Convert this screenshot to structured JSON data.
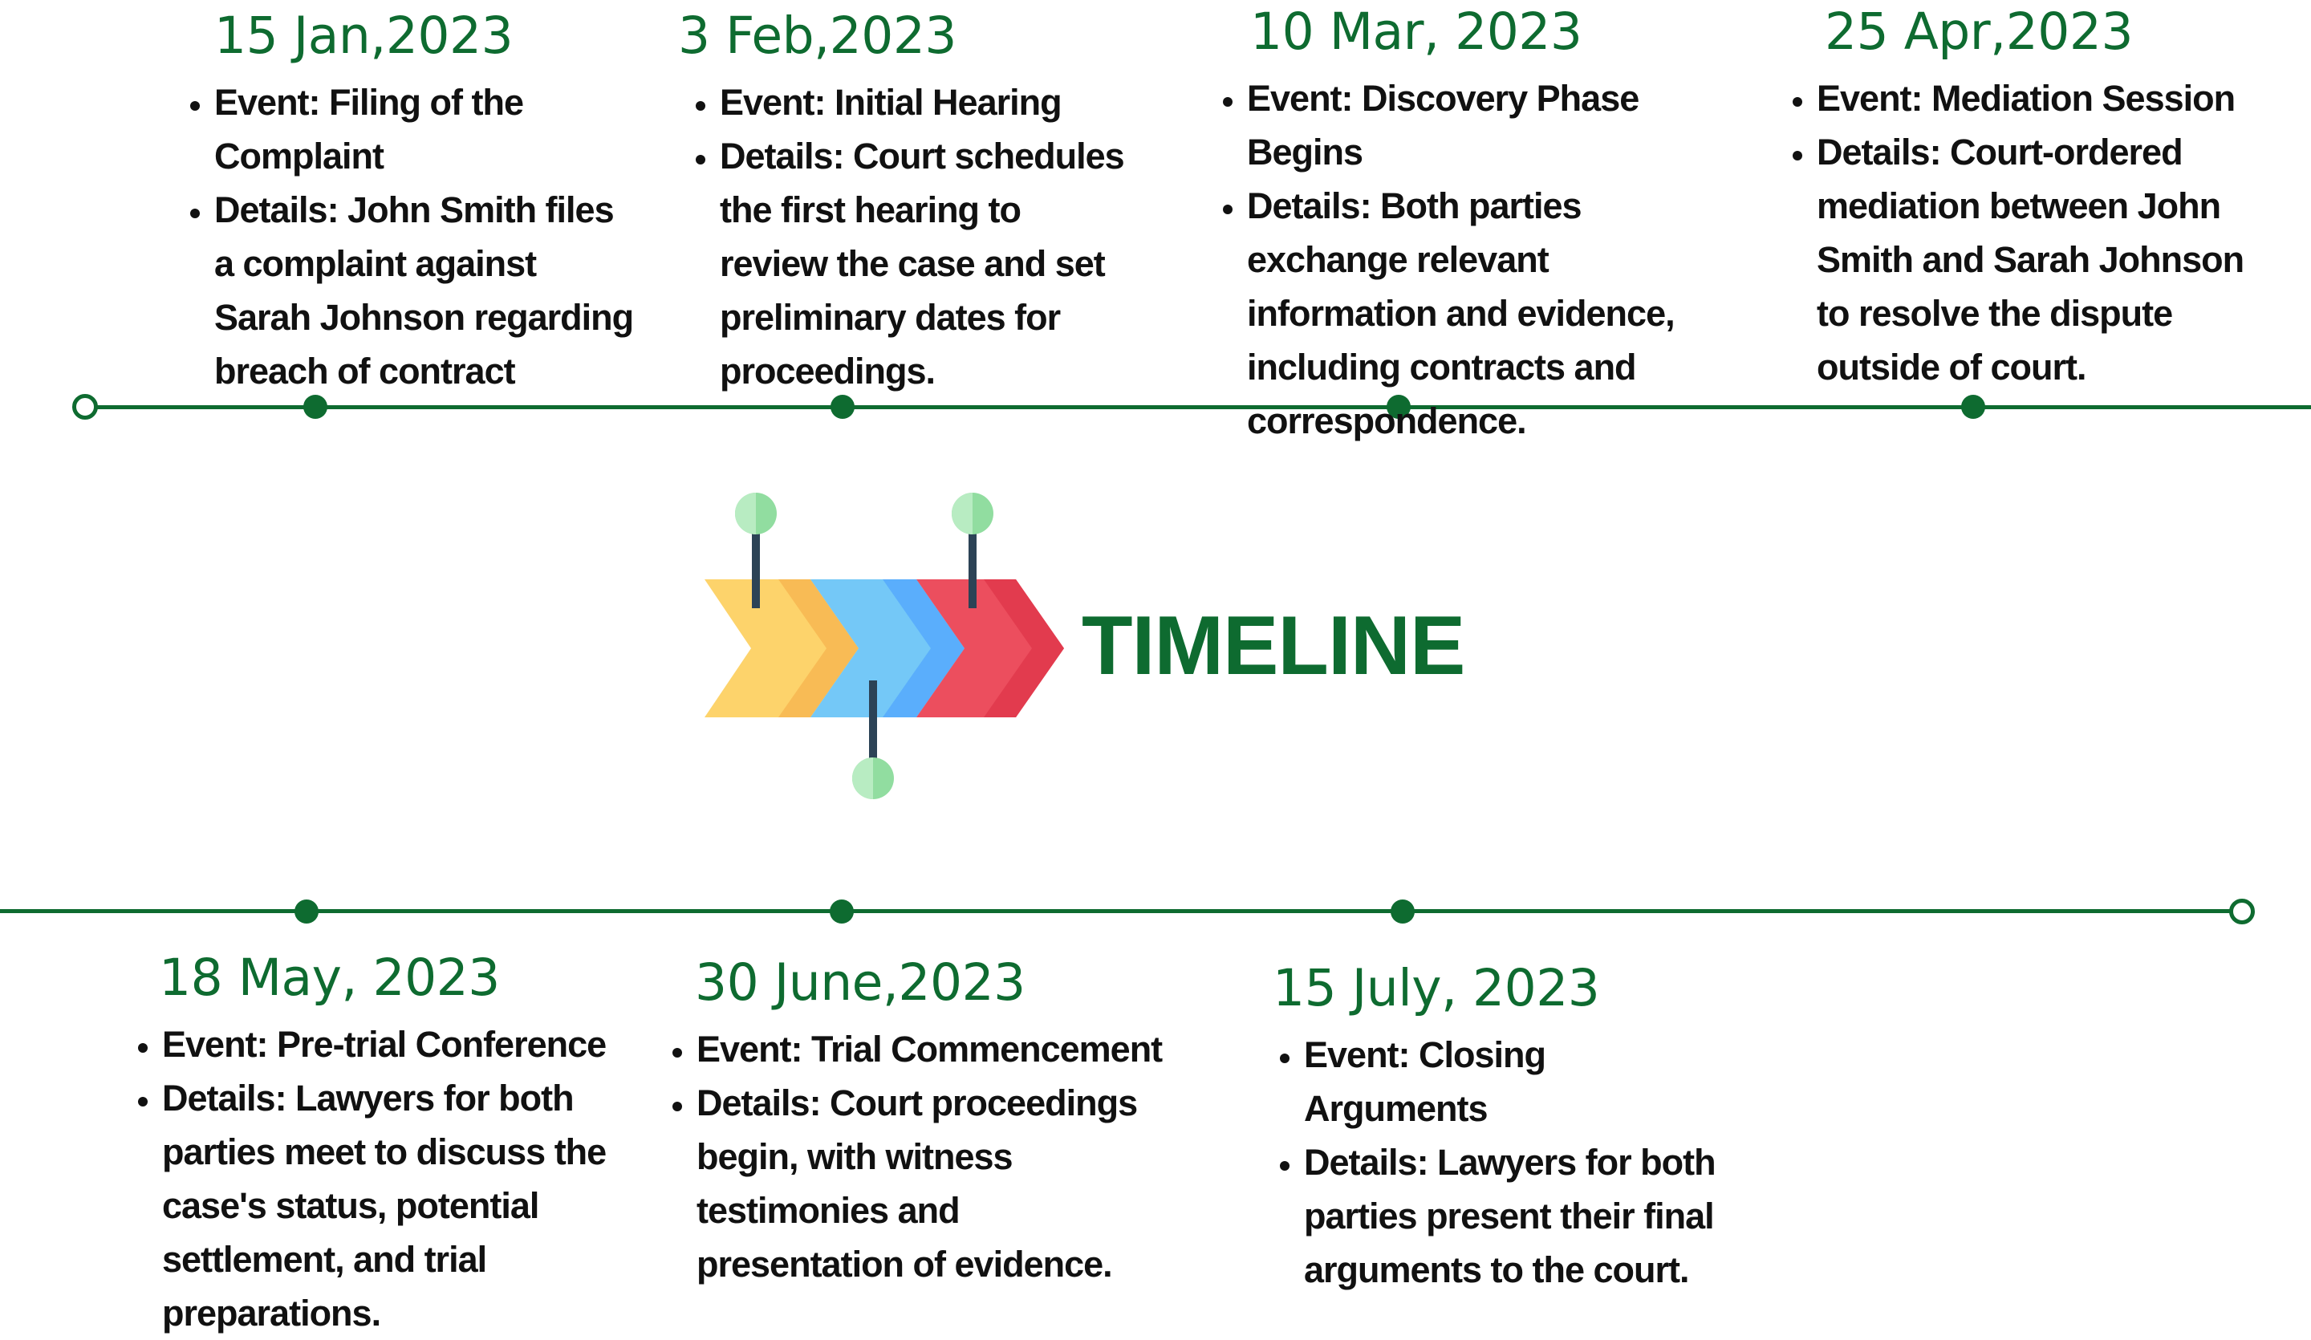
{
  "title": "TIMELINE",
  "icon": "arrow-timeline-icon",
  "colors": {
    "line": "#0e6b30",
    "title": "#0e6b30",
    "arrow_yellow": "#fdd36b",
    "arrow_blue": "#74c8f7",
    "arrow_red": "#ec4e5e",
    "pin": "#91dda0"
  },
  "events_top": [
    {
      "date": "15 Jan,2023",
      "event": "Event: Filing of the Complaint",
      "details": "Details: John Smith files a complaint against  Sarah Johnson regarding breach of contract"
    },
    {
      "date": "3 Feb,2023",
      "event": "Event: Initial Hearing",
      "details": "Details: Court schedules the first hearing to review the case and set preliminary dates for proceedings."
    },
    {
      "date": "10 Mar, 2023",
      "event": "Event: Discovery Phase Begins",
      "details": "Details: Both parties exchange relevant information  and evidence, including contracts and correspondence."
    },
    {
      "date": "25 Apr,2023",
      "event": "Event: Mediation Session",
      "details": "Details: Court-ordered mediation between John Smith and Sarah Johnson to resolve the dispute outside of court."
    }
  ],
  "events_bottom": [
    {
      "date": "18 May, 2023",
      "event": "Event: Pre-trial Conference",
      "details": "Details: Lawyers for both parties meet to discuss  the case's status, potential settlement, and trial preparations."
    },
    {
      "date": "30 June,2023",
      "event": "Event: Trial Commencement",
      "details": "Details: Court proceedings begin, with witness testimonies and presentation of evidence."
    },
    {
      "date": "15 July, 2023",
      "event": "Event: Closing Arguments",
      "details": "Details: Lawyers for both parties present their  final arguments to the court."
    }
  ]
}
